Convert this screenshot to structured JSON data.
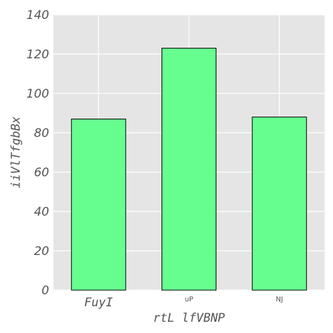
{
  "chart_data": {
    "type": "bar",
    "categories": [
      "FuyI",
      "uP",
      "NJ"
    ],
    "values": [
      87,
      123,
      88
    ],
    "xlabel": "rtL lfVBNP",
    "ylabel": "iiVlTfgbBx",
    "ylim": [
      0,
      140
    ],
    "yticks": [
      0,
      20,
      40,
      60,
      80,
      100,
      120,
      140
    ],
    "grid": true,
    "colors": {
      "bar_fill": "#66ff8f",
      "bar_edge": "#000000",
      "plot_background": "#e5e5e5",
      "grid": "#ffffff",
      "text": "#555555"
    }
  }
}
